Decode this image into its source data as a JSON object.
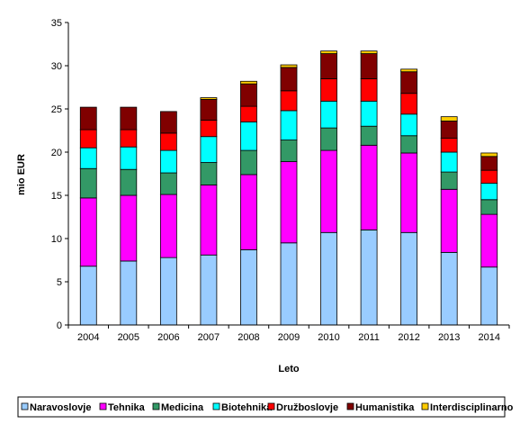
{
  "chart_data": {
    "type": "bar",
    "stacked": true,
    "title": "",
    "xlabel": "Leto",
    "ylabel": "mio EUR",
    "ylim": [
      0,
      35
    ],
    "yticks": [
      0,
      5,
      10,
      15,
      20,
      25,
      30,
      35
    ],
    "grid": false,
    "legend_position": "bottom",
    "categories": [
      "2004",
      "2005",
      "2006",
      "2007",
      "2008",
      "2009",
      "2010",
      "2011",
      "2012",
      "2013",
      "2014"
    ],
    "series": [
      {
        "name": "Naravoslovje",
        "color": "#99CCFF",
        "values": [
          6.8,
          7.4,
          7.8,
          8.1,
          8.7,
          9.5,
          10.7,
          11.0,
          10.7,
          8.4,
          6.7
        ]
      },
      {
        "name": "Tehnika",
        "color": "#FF00FF",
        "values": [
          7.9,
          7.6,
          7.3,
          8.1,
          8.7,
          9.4,
          9.5,
          9.8,
          9.2,
          7.3,
          6.1
        ]
      },
      {
        "name": "Medicina",
        "color": "#339966",
        "values": [
          3.4,
          3.0,
          2.5,
          2.6,
          2.8,
          2.5,
          2.6,
          2.2,
          2.0,
          2.0,
          1.7
        ]
      },
      {
        "name": "Biotehnika",
        "color": "#00FFFF",
        "values": [
          2.4,
          2.6,
          2.6,
          3.0,
          3.3,
          3.4,
          3.1,
          2.9,
          2.5,
          2.3,
          1.9
        ]
      },
      {
        "name": "Družboslovje",
        "color": "#FF0000",
        "values": [
          2.1,
          2.0,
          2.0,
          1.9,
          1.8,
          2.3,
          2.6,
          2.6,
          2.4,
          1.6,
          1.5
        ]
      },
      {
        "name": "Humanistika",
        "color": "#800000",
        "values": [
          2.6,
          2.6,
          2.5,
          2.4,
          2.6,
          2.7,
          2.9,
          2.9,
          2.5,
          2.0,
          1.6
        ]
      },
      {
        "name": "Interdisciplinarno",
        "color": "#FFCC00",
        "values": [
          0.0,
          0.0,
          0.0,
          0.2,
          0.3,
          0.3,
          0.3,
          0.3,
          0.3,
          0.5,
          0.4
        ]
      }
    ]
  }
}
